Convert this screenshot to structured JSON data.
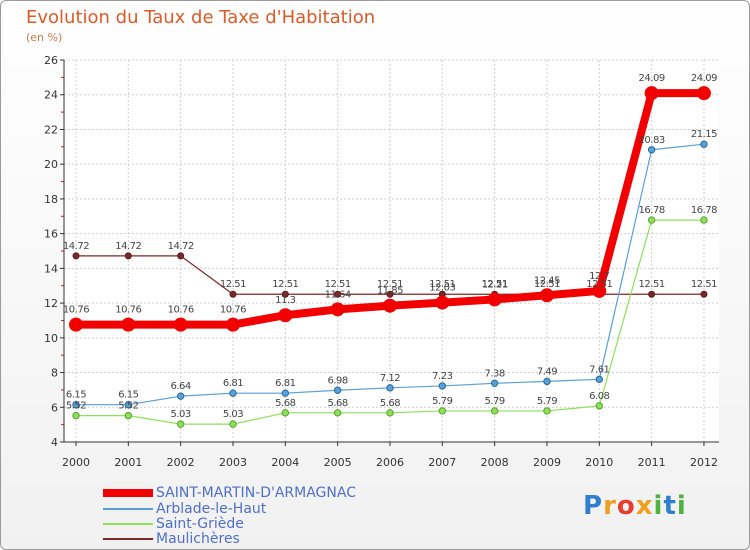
{
  "title": "Evolution du Taux de Taxe d'Habitation",
  "unit": "(en %)",
  "colors": {
    "title": "#dd5a28",
    "legend_text": "#5070c8",
    "saint_martin": "#f20000",
    "arblade": "#5a9fd6",
    "saint_griede": "#8ee05a",
    "maulicheres": "#7a2a2a"
  },
  "logo": {
    "letters": [
      "P",
      "r",
      "o",
      "x",
      "i",
      "t",
      "i"
    ]
  },
  "chart_data": {
    "type": "line",
    "title": "Evolution du Taux de Taxe d'Habitation",
    "ylabel": "(en %)",
    "xlabel": "",
    "ylim": [
      4,
      26
    ],
    "yticks": [
      "4",
      "6",
      "8",
      "10",
      "12",
      "14",
      "16",
      "18",
      "20",
      "22",
      "24",
      "26"
    ],
    "categories": [
      "2000",
      "2001",
      "2002",
      "2003",
      "2004",
      "2005",
      "2006",
      "2007",
      "2008",
      "2009",
      "2010",
      "2011",
      "2012"
    ],
    "series": [
      {
        "name": "Maulichères",
        "key": "maulicheres",
        "values": [
          14.72,
          14.72,
          14.72,
          12.51,
          12.51,
          12.51,
          12.51,
          12.51,
          12.51,
          12.51,
          12.51,
          12.51,
          12.51
        ],
        "labels": [
          "14.72",
          "14.72",
          "14.72",
          "12.51",
          "12.51",
          "12.51",
          "12.51",
          "12.51",
          "12.51",
          "12.51",
          "12.51",
          "12.51",
          "12.51"
        ]
      },
      {
        "name": "Saint-Griède",
        "key": "saint_griede",
        "values": [
          5.52,
          5.52,
          5.03,
          5.03,
          5.68,
          5.68,
          5.68,
          5.79,
          5.79,
          5.79,
          6.08,
          16.78,
          16.78
        ],
        "labels": [
          "5.52",
          "5.52",
          "5.03",
          "5.03",
          "5.68",
          "5.68",
          "5.68",
          "5.79",
          "5.79",
          "5.79",
          "6.08",
          "16.78",
          "16.78"
        ]
      },
      {
        "name": "Arblade-le-Haut",
        "key": "arblade",
        "values": [
          6.15,
          6.15,
          6.64,
          6.81,
          6.81,
          6.98,
          7.12,
          7.23,
          7.38,
          7.49,
          7.61,
          20.83,
          21.15
        ],
        "labels": [
          "6.15",
          "6.15",
          "6.64",
          "6.81",
          "6.81",
          "6.98",
          "7.12",
          "7.23",
          "7.38",
          "7.49",
          "7.61",
          "20.83",
          "21.15"
        ]
      },
      {
        "name": "SAINT-MARTIN-D'ARMAGNAC",
        "key": "saint_martin",
        "values": [
          10.76,
          10.76,
          10.76,
          10.76,
          11.3,
          11.64,
          11.85,
          12.03,
          12.21,
          12.45,
          12.7,
          24.09,
          24.09
        ],
        "labels": [
          "10.76",
          "10.76",
          "10.76",
          "10.76",
          "11.3",
          "11.64",
          "11.85",
          "12.03",
          "12.21",
          "12.45",
          "12.7",
          "24.09",
          "24.09"
        ]
      }
    ],
    "legend_order": [
      "saint_martin",
      "arblade",
      "saint_griede",
      "maulicheres"
    ],
    "legend_position": "bottom-left"
  }
}
